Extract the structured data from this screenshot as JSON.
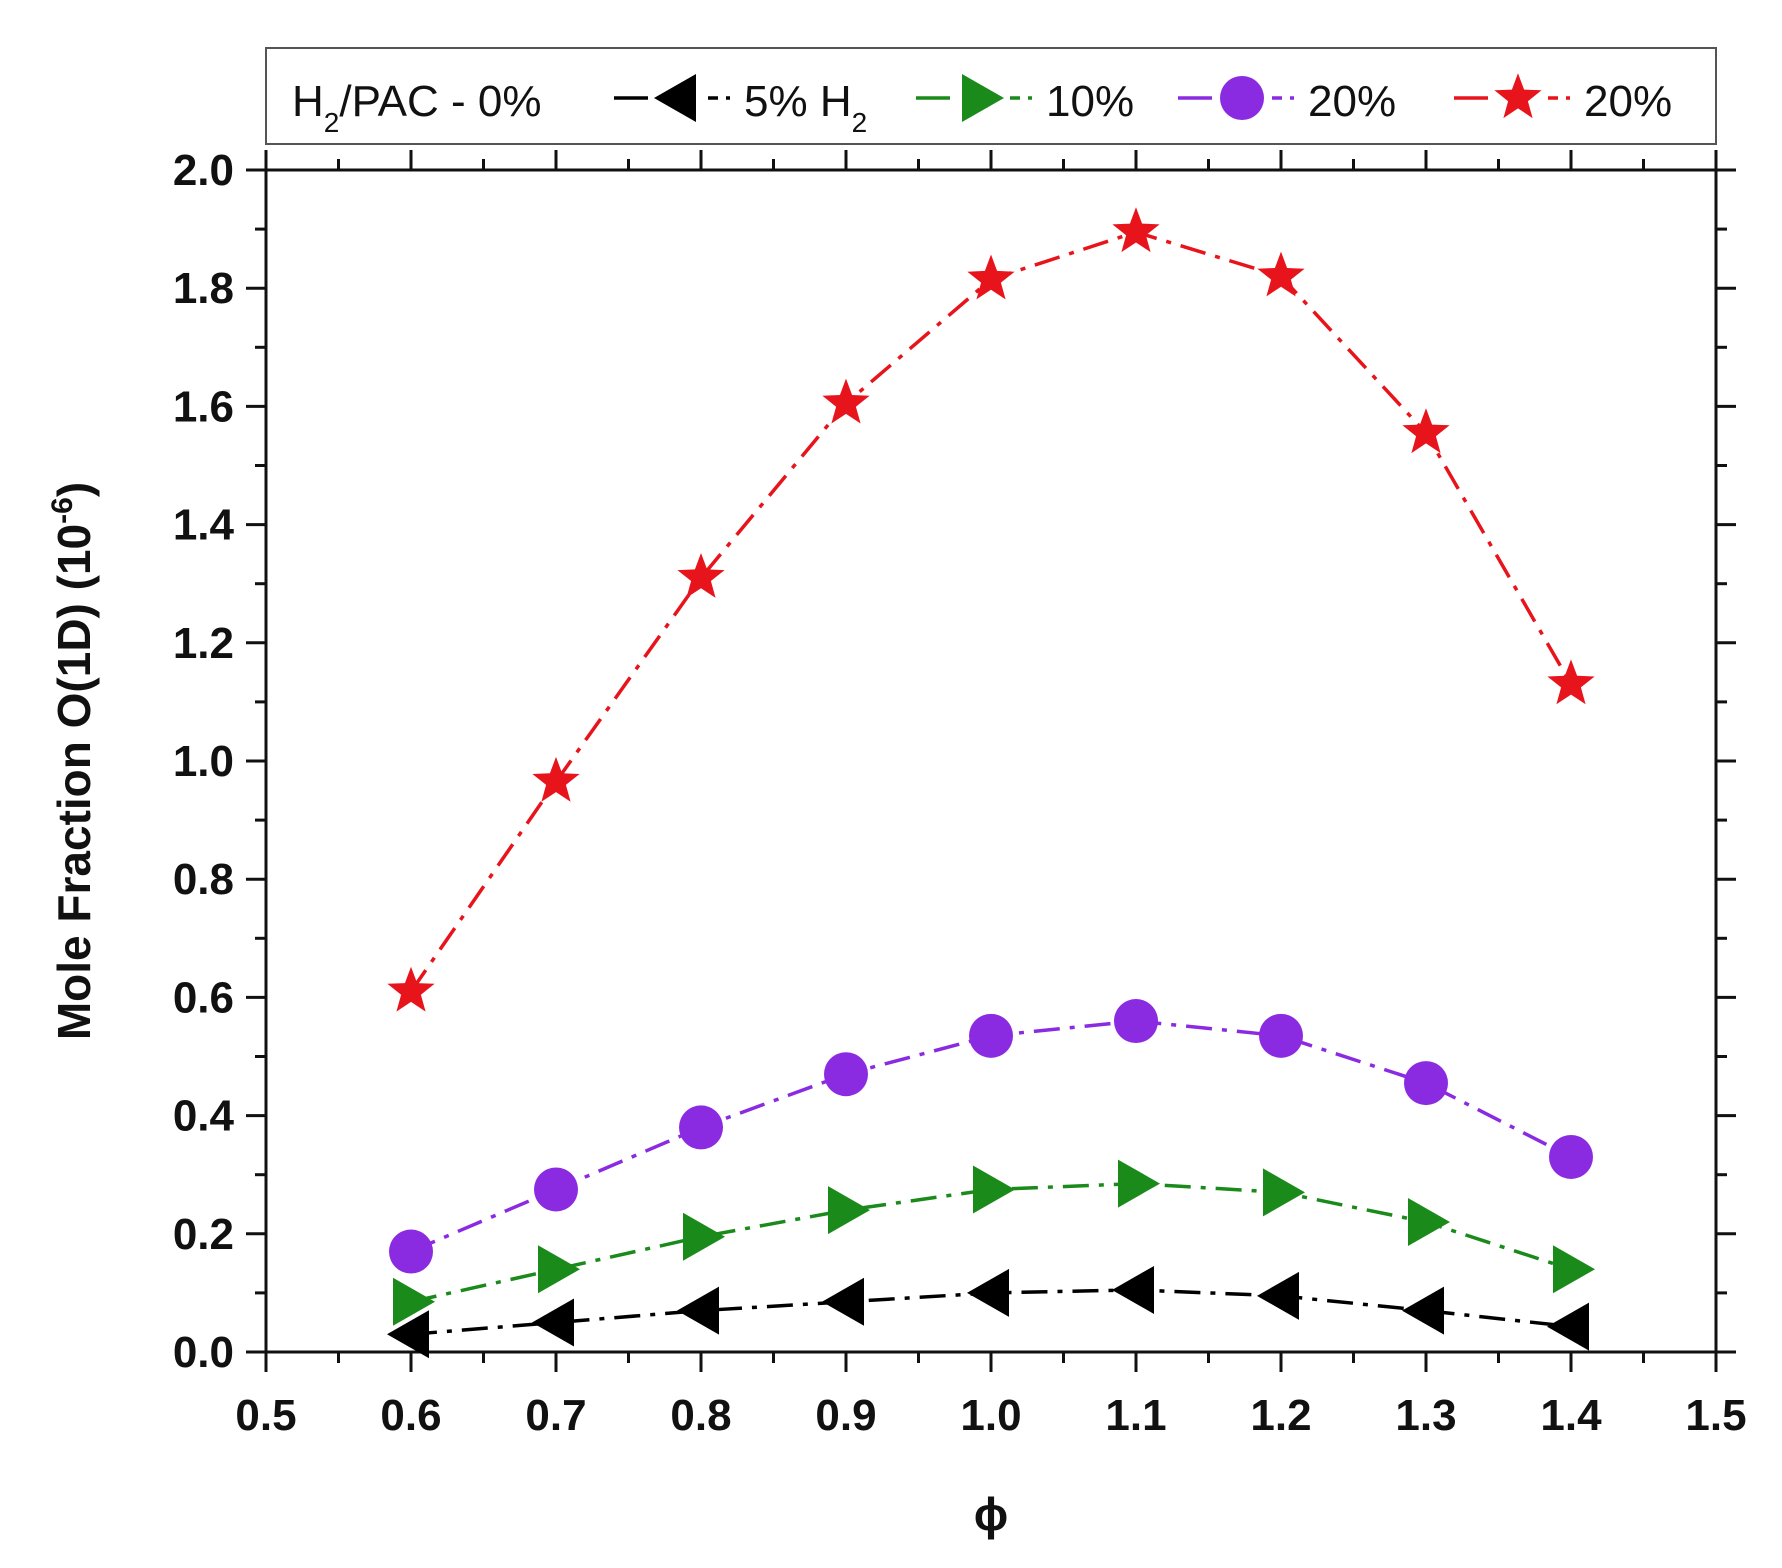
{
  "chart_data": {
    "type": "line",
    "title": "",
    "xlabel": "ϕ",
    "ylabel": "Mole Fraction O(1D) (10",
    "ylabel_exponent": "-6",
    "ylabel_suffix": ")",
    "xlim": [
      0.5,
      1.5
    ],
    "ylim": [
      0.0,
      2.0
    ],
    "x_ticks": [
      "0.5",
      "0.6",
      "0.7",
      "0.8",
      "0.9",
      "1.0",
      "1.1",
      "1.2",
      "1.3",
      "1.4",
      "1.5"
    ],
    "y_ticks": [
      "0.0",
      "0.2",
      "0.4",
      "0.6",
      "0.8",
      "1.0",
      "1.2",
      "1.4",
      "1.6",
      "1.8",
      "2.0"
    ],
    "x": [
      0.6,
      0.7,
      0.8,
      0.9,
      1.0,
      1.1,
      1.2,
      1.3,
      1.4
    ],
    "legend": {
      "position": "top",
      "prefix": {
        "main": "H",
        "sub": "2",
        "rest": "/PAC - 0%"
      }
    },
    "series": [
      {
        "name": "5% H2",
        "label_main": "5% H",
        "label_sub": "2",
        "color": "#000000",
        "marker": "triangle-left",
        "values": [
          0.03,
          0.05,
          0.07,
          0.085,
          0.1,
          0.105,
          0.095,
          0.07,
          0.043
        ]
      },
      {
        "name": "10%",
        "label_main": "10%",
        "label_sub": "",
        "color": "#1a8a1a",
        "marker": "triangle-right",
        "values": [
          0.085,
          0.14,
          0.195,
          0.24,
          0.275,
          0.285,
          0.27,
          0.22,
          0.14
        ]
      },
      {
        "name": "20% (circle)",
        "label_main": "20%",
        "label_sub": "",
        "color": "#8a2be2",
        "marker": "circle",
        "values": [
          0.17,
          0.275,
          0.38,
          0.47,
          0.535,
          0.56,
          0.535,
          0.455,
          0.33
        ]
      },
      {
        "name": "20% (star)",
        "label_main": "20%",
        "label_sub": "",
        "color": "#e8141c",
        "marker": "star",
        "values": [
          0.61,
          0.965,
          1.31,
          1.605,
          1.815,
          1.895,
          1.82,
          1.555,
          1.13
        ]
      }
    ]
  }
}
